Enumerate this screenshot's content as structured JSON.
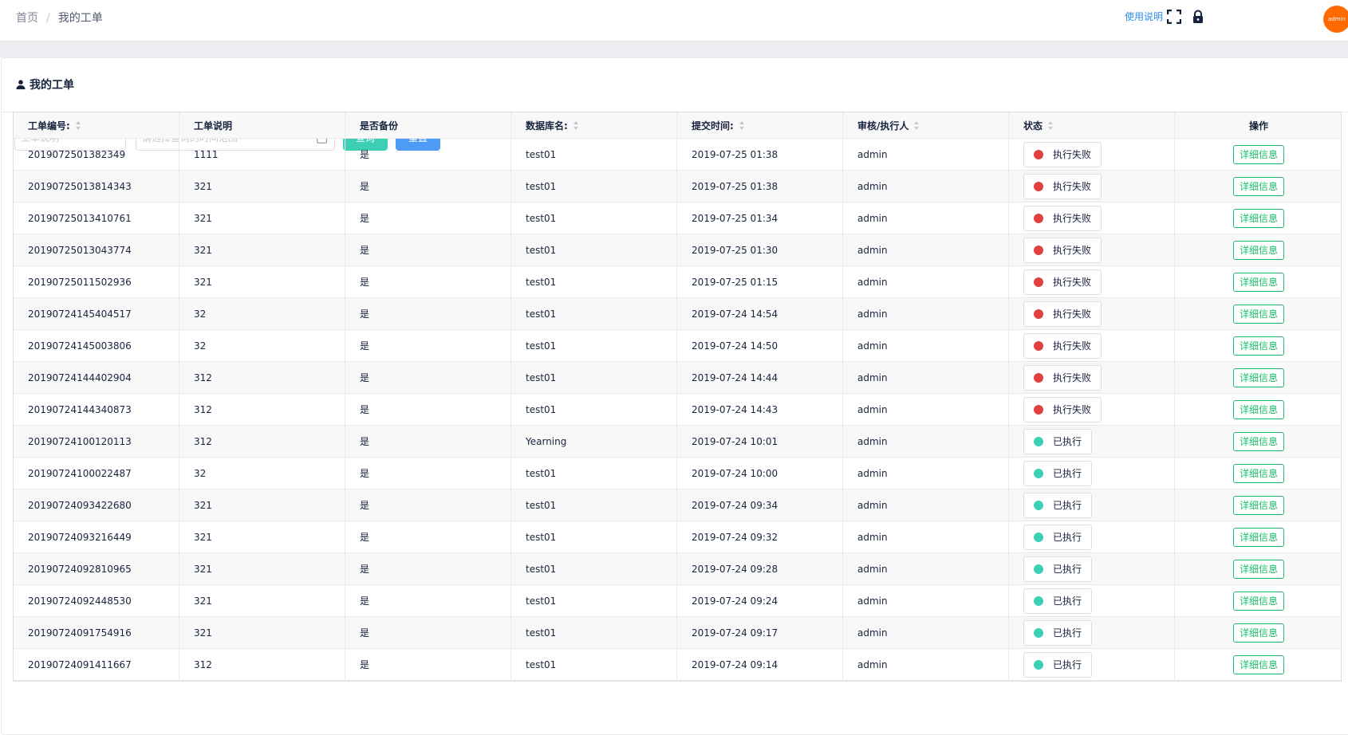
{
  "header": {
    "breadcrumb": [
      "首页",
      "我的工单"
    ],
    "help_label": "使用说明",
    "avatar_text": "admin",
    "avatar_color": "#ff6a00"
  },
  "card": {
    "title": "我的工单"
  },
  "filters": {
    "desc_placeholder": "工单说明",
    "date_placeholder": "请选择查询的时间范围",
    "query_label": "查询",
    "reset_label": "重置",
    "query_color": "#3ccfb4",
    "reset_color": "#4e9bf5"
  },
  "table": {
    "columns": [
      "工单编号:",
      "工单说明",
      "是否备份",
      "数据库名:",
      "提交时间:",
      "审核/执行人",
      "状态",
      "操作"
    ],
    "detail_label": "详细信息",
    "status_colors": {
      "执行失败": "#e0403f",
      "已执行": "#3ccfb4"
    },
    "rows": [
      [
        "2019072501382349",
        "1111",
        "是",
        "test01",
        "2019-07-25 01:38",
        "admin",
        "执行失败"
      ],
      [
        "20190725013814343",
        "321",
        "是",
        "test01",
        "2019-07-25 01:38",
        "admin",
        "执行失败"
      ],
      [
        "20190725013410761",
        "321",
        "是",
        "test01",
        "2019-07-25 01:34",
        "admin",
        "执行失败"
      ],
      [
        "20190725013043774",
        "321",
        "是",
        "test01",
        "2019-07-25 01:30",
        "admin",
        "执行失败"
      ],
      [
        "20190725011502936",
        "321",
        "是",
        "test01",
        "2019-07-25 01:15",
        "admin",
        "执行失败"
      ],
      [
        "20190724145404517",
        "32",
        "是",
        "test01",
        "2019-07-24 14:54",
        "admin",
        "执行失败"
      ],
      [
        "20190724145003806",
        "32",
        "是",
        "test01",
        "2019-07-24 14:50",
        "admin",
        "执行失败"
      ],
      [
        "20190724144402904",
        "312",
        "是",
        "test01",
        "2019-07-24 14:44",
        "admin",
        "执行失败"
      ],
      [
        "20190724144340873",
        "312",
        "是",
        "test01",
        "2019-07-24 14:43",
        "admin",
        "执行失败"
      ],
      [
        "20190724100120113",
        "312",
        "是",
        "Yearning",
        "2019-07-24 10:01",
        "admin",
        "已执行"
      ],
      [
        "20190724100022487",
        "32",
        "是",
        "test01",
        "2019-07-24 10:00",
        "admin",
        "已执行"
      ],
      [
        "20190724093422680",
        "321",
        "是",
        "test01",
        "2019-07-24 09:34",
        "admin",
        "已执行"
      ],
      [
        "20190724093216449",
        "321",
        "是",
        "test01",
        "2019-07-24 09:32",
        "admin",
        "已执行"
      ],
      [
        "20190724092810965",
        "321",
        "是",
        "test01",
        "2019-07-24 09:28",
        "admin",
        "已执行"
      ],
      [
        "20190724092448530",
        "321",
        "是",
        "test01",
        "2019-07-24 09:24",
        "admin",
        "已执行"
      ],
      [
        "20190724091754916",
        "321",
        "是",
        "test01",
        "2019-07-24 09:17",
        "admin",
        "已执行"
      ],
      [
        "20190724091411667",
        "312",
        "是",
        "test01",
        "2019-07-24 09:14",
        "admin",
        "已执行"
      ]
    ]
  }
}
